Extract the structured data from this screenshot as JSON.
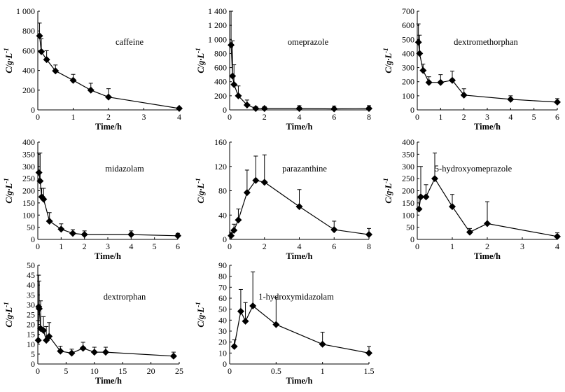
{
  "figure": {
    "ylabel_main": "C/g·L",
    "ylabel_sup": "-1",
    "xlabel": "Time/h"
  },
  "chart_data": [
    {
      "type": "line",
      "title": "caffeine",
      "xlabel": "Time/h",
      "ylabel": "C/g·L-1",
      "xlim": [
        0,
        4
      ],
      "ylim": [
        0,
        1000
      ],
      "xticks": [
        0,
        1,
        2,
        3,
        4
      ],
      "yticks": [
        0,
        200,
        400,
        600,
        800,
        1000
      ],
      "yticklabels": [
        "0",
        "200",
        "400",
        "600",
        "800",
        "1 000"
      ],
      "x": [
        0.05,
        0.1,
        0.25,
        0.5,
        1,
        1.5,
        2,
        4
      ],
      "y": [
        750,
        590,
        510,
        395,
        300,
        200,
        130,
        15
      ],
      "err": [
        130,
        130,
        90,
        60,
        60,
        70,
        85,
        5
      ]
    },
    {
      "type": "line",
      "title": "omeprazole",
      "xlabel": "Time/h",
      "ylabel": "C/g·L-1",
      "xlim": [
        0,
        8
      ],
      "ylim": [
        0,
        1400
      ],
      "xticks": [
        0,
        2,
        4,
        6,
        8
      ],
      "yticks": [
        0,
        200,
        400,
        600,
        800,
        1000,
        1200,
        1400
      ],
      "yticklabels": [
        "0",
        "200",
        "400",
        "600",
        "800",
        "1 000",
        "1 200",
        "1 400"
      ],
      "x": [
        0.083,
        0.167,
        0.25,
        0.5,
        1,
        1.5,
        2,
        4,
        6,
        8
      ],
      "y": [
        920,
        480,
        360,
        200,
        70,
        20,
        20,
        20,
        15,
        20
      ],
      "err": [
        480,
        500,
        280,
        140,
        70,
        25,
        25,
        40,
        40,
        40
      ]
    },
    {
      "type": "line",
      "title": "dextromethorphan",
      "xlabel": "Time/h",
      "ylabel": "C/g·L-1",
      "xlim": [
        0,
        6
      ],
      "ylim": [
        0,
        700
      ],
      "xticks": [
        0,
        1,
        2,
        3,
        4,
        5,
        6
      ],
      "yticks": [
        0,
        100,
        200,
        300,
        400,
        500,
        600,
        700
      ],
      "yticklabels": [
        "0",
        "100",
        "200",
        "300",
        "400",
        "500",
        "600",
        "700"
      ],
      "x": [
        0.05,
        0.1,
        0.25,
        0.5,
        1,
        1.5,
        2,
        4,
        6
      ],
      "y": [
        480,
        400,
        280,
        195,
        195,
        210,
        105,
        75,
        55
      ],
      "err": [
        130,
        130,
        45,
        40,
        55,
        65,
        45,
        25,
        25
      ]
    },
    {
      "type": "line",
      "title": "midazolam",
      "xlabel": "Time/h",
      "ylabel": "C/g·L-1",
      "xlim": [
        0,
        6
      ],
      "ylim": [
        0,
        400
      ],
      "xticks": [
        0,
        1,
        2,
        3,
        4,
        5,
        6
      ],
      "yticks": [
        0,
        50,
        100,
        150,
        200,
        250,
        300,
        350,
        400
      ],
      "yticklabels": [
        "0",
        "50",
        "100",
        "150",
        "200",
        "250",
        "300",
        "350",
        "400"
      ],
      "x": [
        0.05,
        0.1,
        0.167,
        0.25,
        0.5,
        1,
        1.5,
        2,
        4,
        6
      ],
      "y": [
        275,
        240,
        175,
        165,
        75,
        42,
        25,
        20,
        20,
        15
      ],
      "err": [
        80,
        115,
        35,
        45,
        35,
        22,
        15,
        15,
        15,
        10
      ]
    },
    {
      "type": "line",
      "title": "parazanthine",
      "xlabel": "Time/h",
      "ylabel": "C/g·L-1",
      "xlim": [
        0,
        8
      ],
      "ylim": [
        0,
        160
      ],
      "xticks": [
        0,
        2,
        4,
        6,
        8
      ],
      "yticks": [
        0,
        40,
        80,
        120,
        160
      ],
      "yticklabels": [
        "0",
        "40",
        "80",
        "120",
        "160"
      ],
      "x": [
        0.083,
        0.25,
        0.5,
        1,
        1.5,
        2,
        4,
        6,
        8
      ],
      "y": [
        6,
        15,
        32,
        77,
        97,
        94,
        54,
        16,
        8
      ],
      "err": [
        6,
        10,
        18,
        37,
        40,
        45,
        28,
        14,
        10
      ]
    },
    {
      "type": "line",
      "title": "5-hydroxyomeprazole",
      "xlabel": "Time/h",
      "ylabel": "C/g·L-1",
      "xlim": [
        0,
        4
      ],
      "ylim": [
        0,
        400
      ],
      "xticks": [
        0,
        1,
        2,
        3,
        4
      ],
      "yticks": [
        0,
        50,
        100,
        150,
        200,
        250,
        300,
        350,
        400
      ],
      "yticklabels": [
        "0",
        "50",
        "100",
        "150",
        "200",
        "250",
        "300",
        "350",
        "400"
      ],
      "x": [
        0.05,
        0.1,
        0.25,
        0.5,
        1,
        1.5,
        2,
        4
      ],
      "y": [
        125,
        175,
        175,
        250,
        135,
        30,
        65,
        12
      ],
      "err": [
        45,
        125,
        50,
        105,
        50,
        15,
        90,
        15
      ]
    },
    {
      "type": "line",
      "title": "dextrorphan",
      "xlabel": "Time/h",
      "ylabel": "C/g·L-1",
      "xlim": [
        0,
        25
      ],
      "ylim": [
        0,
        50
      ],
      "xticks": [
        0,
        5,
        10,
        15,
        20,
        25
      ],
      "yticks": [
        0,
        5,
        10,
        15,
        20,
        25,
        30,
        35,
        40,
        45,
        50
      ],
      "yticklabels": [
        "0",
        "5",
        "10",
        "15",
        "20",
        "25",
        "30",
        "35",
        "40",
        "45",
        "50"
      ],
      "x": [
        0.083,
        0.167,
        0.25,
        0.5,
        1,
        1.5,
        2,
        4,
        6,
        8,
        10,
        12,
        24
      ],
      "y": [
        12,
        29,
        28,
        18,
        17,
        12,
        14,
        6.5,
        5.5,
        8,
        6,
        6,
        4
      ],
      "err": [
        10,
        16,
        14,
        14,
        7,
        7,
        7,
        2.5,
        2,
        3,
        2.5,
        2.5,
        2
      ]
    },
    {
      "type": "line",
      "title": "1-hydroxymidazolam",
      "xlabel": "Time/h",
      "ylabel": "C/g·L-1",
      "xlim": [
        0,
        1.5
      ],
      "ylim": [
        0,
        90
      ],
      "xticks": [
        0,
        0.5,
        1,
        1.5
      ],
      "yticks": [
        0,
        10,
        20,
        30,
        40,
        50,
        60,
        70,
        80,
        90
      ],
      "yticklabels": [
        "0",
        "10",
        "20",
        "30",
        "40",
        "50",
        "60",
        "70",
        "80",
        "90"
      ],
      "x": [
        0.05,
        0.12,
        0.17,
        0.25,
        0.5,
        1,
        1.5
      ],
      "y": [
        16,
        48,
        39,
        53,
        36,
        18,
        10
      ],
      "err": [
        6,
        20,
        17,
        31,
        25,
        11,
        6
      ]
    }
  ]
}
